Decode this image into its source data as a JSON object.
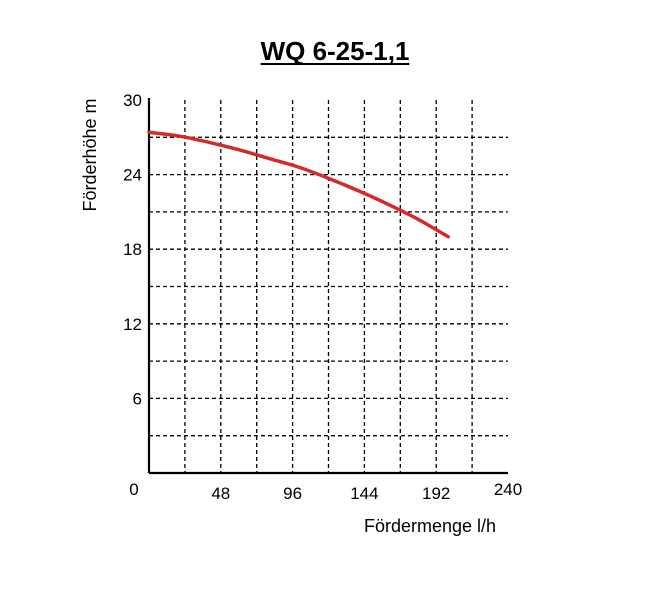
{
  "chart_data": {
    "type": "line",
    "title": "WQ 6-25-1,1",
    "xlabel": "Fördermenge l/h",
    "ylabel": "Förderhöhe m",
    "xlim": [
      0,
      240
    ],
    "ylim": [
      0,
      30
    ],
    "xticks": [
      0,
      48,
      96,
      144,
      192,
      240
    ],
    "yticks": [
      6,
      12,
      18,
      24,
      30
    ],
    "grid": true,
    "colors": {
      "curve": "#d42a2a"
    },
    "series": [
      {
        "x": [
          0,
          20,
          40,
          60,
          80,
          100,
          120,
          140,
          160,
          180,
          200
        ],
        "y": [
          27.4,
          27.1,
          26.6,
          26.0,
          25.3,
          24.6,
          23.7,
          22.7,
          21.6,
          20.4,
          19.0
        ]
      }
    ]
  }
}
